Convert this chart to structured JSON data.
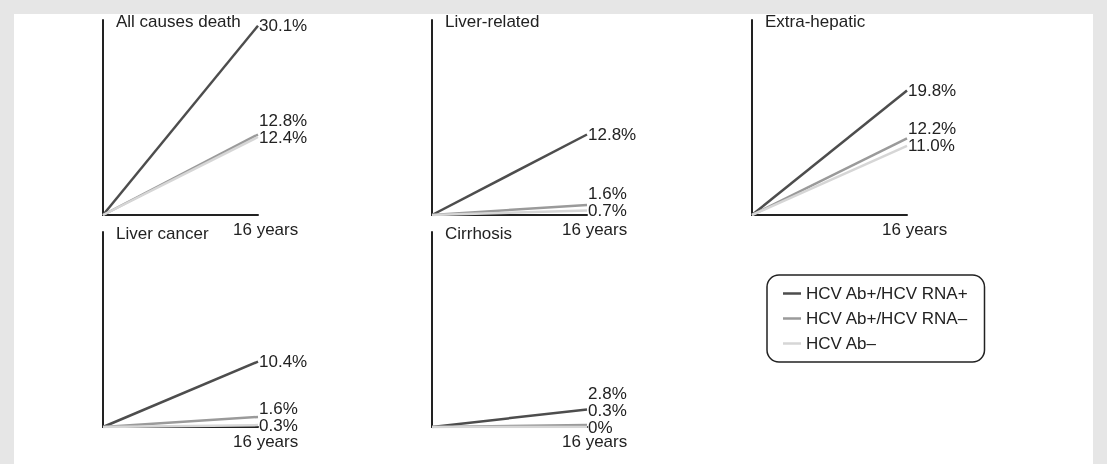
{
  "chart_data": [
    {
      "type": "line",
      "title": "All causes death",
      "categories": [
        null,
        null
      ],
      "annotations": [
        "16 years"
      ],
      "series": [
        {
          "color": "#4d4d4d",
          "values": [
            0,
            30.1
          ],
          "value_labels": [
            null,
            "30.1%"
          ]
        },
        {
          "color": "#9a9a9a",
          "values": [
            0,
            12.8
          ],
          "value_labels": [
            null,
            "12.8%"
          ]
        },
        {
          "color": "#d6d6d6",
          "values": [
            0,
            12.4
          ],
          "value_labels": [
            null,
            "12.4%"
          ]
        }
      ],
      "grid": false,
      "marker": "none",
      "line_style": "solid"
    },
    {
      "type": "line",
      "title": "Liver-related",
      "categories": [
        null,
        null
      ],
      "annotations": [
        "16 years"
      ],
      "series": [
        {
          "color": "#4d4d4d",
          "values": [
            0,
            12.8
          ],
          "value_labels": [
            null,
            "12.8%"
          ]
        },
        {
          "color": "#9a9a9a",
          "values": [
            0,
            1.6
          ],
          "value_labels": [
            null,
            "1.6%"
          ]
        },
        {
          "color": "#d6d6d6",
          "values": [
            0,
            0.7
          ],
          "value_labels": [
            null,
            "0.7%"
          ]
        }
      ],
      "grid": false,
      "marker": "none",
      "line_style": "solid"
    },
    {
      "type": "line",
      "title": "Extra-hepatic",
      "categories": [
        null,
        null
      ],
      "annotations": [
        "16 years"
      ],
      "series": [
        {
          "color": "#4d4d4d",
          "values": [
            0,
            19.8
          ],
          "value_labels": [
            null,
            "19.8%"
          ]
        },
        {
          "color": "#9a9a9a",
          "values": [
            0,
            12.2
          ],
          "value_labels": [
            null,
            "12.2%"
          ]
        },
        {
          "color": "#d6d6d6",
          "values": [
            0,
            11.0
          ],
          "value_labels": [
            null,
            "11.0%"
          ]
        }
      ],
      "grid": false,
      "marker": "none",
      "line_style": "solid"
    },
    {
      "type": "line",
      "title": "Liver cancer",
      "categories": [
        null,
        null
      ],
      "annotations": [
        "16 years"
      ],
      "series": [
        {
          "color": "#4d4d4d",
          "values": [
            0,
            10.4
          ],
          "value_labels": [
            null,
            "10.4%"
          ]
        },
        {
          "color": "#9a9a9a",
          "values": [
            0,
            1.6
          ],
          "value_labels": [
            null,
            "1.6%"
          ]
        },
        {
          "color": "#d6d6d6",
          "values": [
            0,
            0.3
          ],
          "value_labels": [
            null,
            "0.3%"
          ]
        }
      ],
      "grid": false,
      "marker": "none",
      "line_style": "solid"
    },
    {
      "type": "line",
      "title": "Cirrhosis",
      "categories": [
        null,
        null
      ],
      "annotations": [
        "16 years"
      ],
      "series": [
        {
          "name": "HCV Ab+/HCV RNA+",
          "color": "#4d4d4d",
          "values": [
            0,
            2.8
          ],
          "value_labels": [
            null,
            "2.8%"
          ]
        },
        {
          "name": "HCV Ab+/HCV RNA–",
          "color": "#9a9a9a",
          "values": [
            0,
            0.3
          ],
          "value_labels": [
            null,
            "0.3%"
          ]
        },
        {
          "name": "HCV Ab–",
          "color": "#d6d6d6",
          "values": [
            0,
            0
          ],
          "value_labels": [
            null,
            "0%"
          ]
        }
      ],
      "grid": false,
      "marker": "none",
      "line_style": "solid",
      "legend": "right"
    }
  ]
}
